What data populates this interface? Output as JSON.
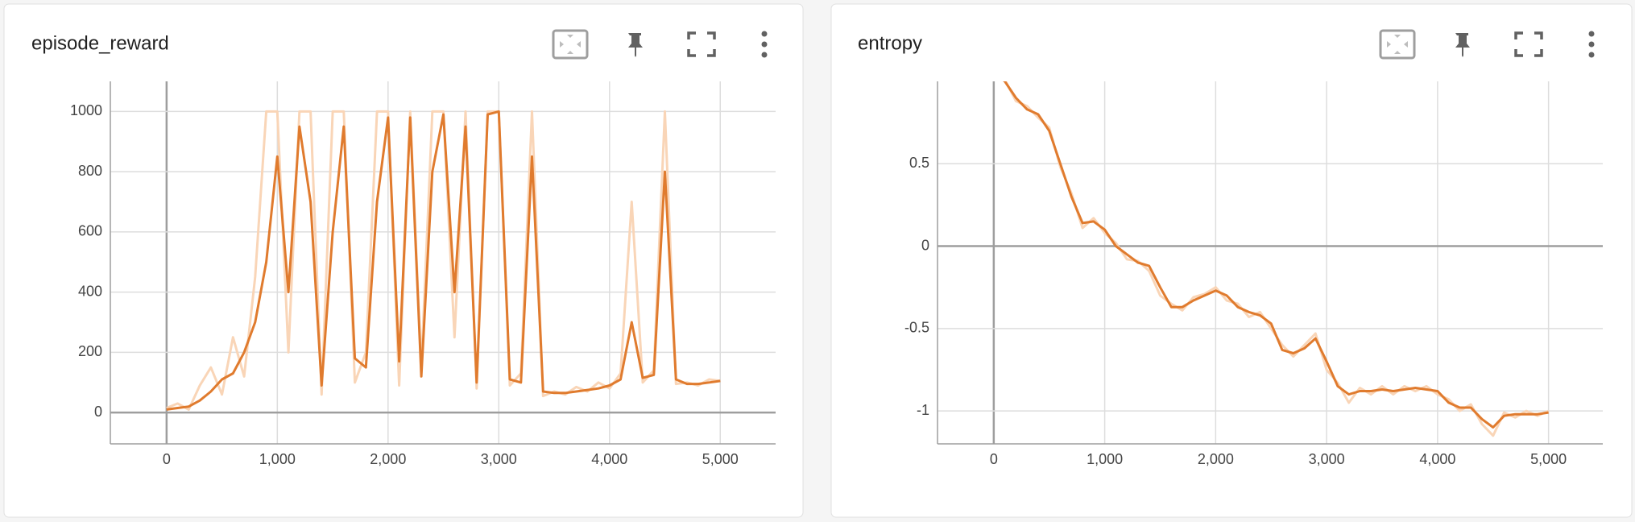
{
  "chart_data": [
    {
      "type": "line",
      "title": "episode_reward",
      "x": [
        0,
        100,
        200,
        300,
        400,
        500,
        600,
        700,
        800,
        900,
        1000,
        1100,
        1200,
        1300,
        1400,
        1500,
        1600,
        1700,
        1800,
        1900,
        2000,
        2100,
        2200,
        2300,
        2400,
        2500,
        2600,
        2700,
        2800,
        2900,
        3000,
        3100,
        3200,
        3300,
        3400,
        3500,
        3600,
        3700,
        3800,
        3900,
        4000,
        4100,
        4200,
        4300,
        4400,
        4500,
        4600,
        4700,
        4800,
        4900,
        5000
      ],
      "series": [
        {
          "color": "#f9d5b7",
          "values": [
            15,
            30,
            10,
            90,
            150,
            60,
            250,
            120,
            450,
            1000,
            1000,
            200,
            1000,
            1000,
            60,
            1000,
            1000,
            100,
            200,
            1000,
            1000,
            90,
            1000,
            150,
            1000,
            1000,
            250,
            1000,
            80,
            1000,
            1000,
            90,
            130,
            1000,
            55,
            70,
            60,
            85,
            70,
            100,
            80,
            130,
            700,
            100,
            140,
            1000,
            95,
            100,
            90,
            110,
            105
          ]
        },
        {
          "color": "#e07b2e",
          "values": [
            10,
            15,
            20,
            40,
            70,
            110,
            130,
            200,
            300,
            500,
            850,
            400,
            950,
            700,
            90,
            600,
            950,
            180,
            150,
            700,
            980,
            170,
            980,
            120,
            800,
            990,
            400,
            950,
            100,
            990,
            1000,
            110,
            100,
            850,
            70,
            65,
            65,
            70,
            75,
            80,
            90,
            110,
            300,
            115,
            125,
            800,
            110,
            95,
            95,
            100,
            105
          ]
        }
      ],
      "xlim": [
        -508,
        5500
      ],
      "ylim": [
        -104,
        1100
      ],
      "xticks": [
        0,
        {
          "value": 1000,
          "label": "1,000"
        },
        {
          "value": 2000,
          "label": "2,000"
        },
        {
          "value": 3000,
          "label": "3,000"
        },
        {
          "value": 4000,
          "label": "4,000"
        },
        {
          "value": 5000,
          "label": "5,000"
        }
      ],
      "yticks": [
        0,
        200,
        400,
        600,
        800,
        1000
      ],
      "grid": true
    },
    {
      "type": "line",
      "title": "entropy",
      "x": [
        0,
        100,
        200,
        300,
        400,
        500,
        600,
        700,
        800,
        900,
        1000,
        1100,
        1200,
        1300,
        1400,
        1500,
        1600,
        1700,
        1800,
        1900,
        2000,
        2100,
        2200,
        2300,
        2400,
        2500,
        2600,
        2700,
        2800,
        2900,
        3000,
        3100,
        3200,
        3300,
        3400,
        3500,
        3600,
        3700,
        3800,
        3900,
        4000,
        4100,
        4200,
        4300,
        4400,
        4500,
        4600,
        4700,
        4800,
        4900,
        5000
      ],
      "series": [
        {
          "color": "#f9d5b7",
          "values": [
            1.06,
            1.01,
            0.88,
            0.85,
            0.78,
            0.72,
            0.48,
            0.32,
            0.11,
            0.17,
            0.08,
            0.02,
            -0.08,
            -0.09,
            -0.15,
            -0.3,
            -0.35,
            -0.39,
            -0.31,
            -0.29,
            -0.25,
            -0.33,
            -0.35,
            -0.43,
            -0.4,
            -0.5,
            -0.6,
            -0.67,
            -0.6,
            -0.53,
            -0.75,
            -0.83,
            -0.95,
            -0.86,
            -0.9,
            -0.85,
            -0.9,
            -0.85,
            -0.88,
            -0.85,
            -0.9,
            -0.93,
            -1.0,
            -0.96,
            -1.08,
            -1.15,
            -1.01,
            -1.04,
            -1.0,
            -1.03,
            -1.0
          ]
        },
        {
          "color": "#e07b2e",
          "values": [
            1.05,
            1.0,
            0.9,
            0.83,
            0.8,
            0.7,
            0.5,
            0.3,
            0.14,
            0.15,
            0.1,
            0.0,
            -0.05,
            -0.1,
            -0.12,
            -0.25,
            -0.37,
            -0.37,
            -0.33,
            -0.3,
            -0.27,
            -0.3,
            -0.37,
            -0.4,
            -0.42,
            -0.47,
            -0.63,
            -0.65,
            -0.62,
            -0.56,
            -0.7,
            -0.85,
            -0.9,
            -0.88,
            -0.88,
            -0.87,
            -0.88,
            -0.87,
            -0.86,
            -0.87,
            -0.88,
            -0.95,
            -0.98,
            -0.98,
            -1.05,
            -1.1,
            -1.03,
            -1.02,
            -1.02,
            -1.02,
            -1.01
          ]
        }
      ],
      "xlim": [
        -507,
        5489
      ],
      "ylim": [
        -1.2,
        1.0
      ],
      "xticks": [
        0,
        {
          "value": 1000,
          "label": "1,000"
        },
        {
          "value": 2000,
          "label": "2,000"
        },
        {
          "value": 3000,
          "label": "3,000"
        },
        {
          "value": 4000,
          "label": "4,000"
        },
        {
          "value": 5000,
          "label": "5,000"
        }
      ],
      "yticks": [
        -1,
        -0.5,
        0,
        0.5
      ],
      "grid": true
    }
  ]
}
